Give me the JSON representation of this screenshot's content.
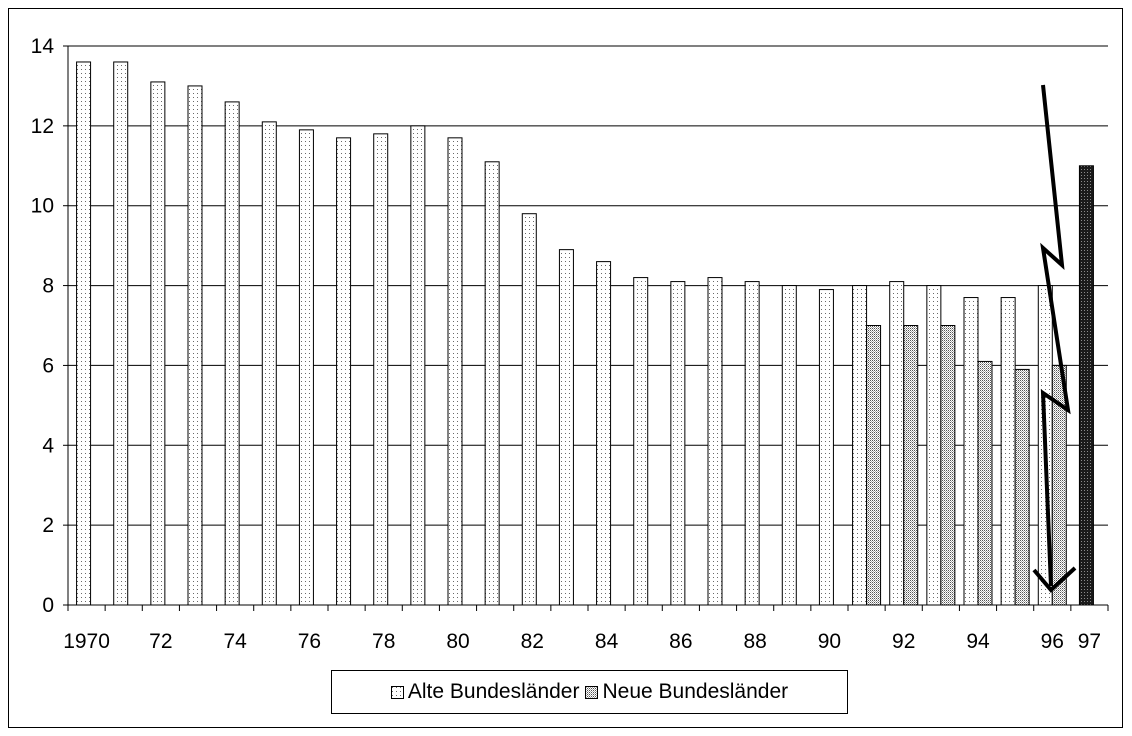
{
  "chart_data": {
    "type": "bar",
    "categories": [
      "1970",
      "1971",
      "1972",
      "1973",
      "1974",
      "1975",
      "1976",
      "1977",
      "1978",
      "1979",
      "1980",
      "1981",
      "1982",
      "1983",
      "1984",
      "1985",
      "1986",
      "1987",
      "1988",
      "1989",
      "1990",
      "1991",
      "1992",
      "1993",
      "1994",
      "1995",
      "1996",
      "1997"
    ],
    "x_tick_labels": [
      "1970",
      "72",
      "74",
      "76",
      "78",
      "80",
      "82",
      "84",
      "86",
      "88",
      "90",
      "92",
      "94",
      "96",
      "97"
    ],
    "x_tick_label_categories": [
      "1970",
      "1972",
      "1974",
      "1976",
      "1978",
      "1980",
      "1982",
      "1984",
      "1986",
      "1988",
      "1990",
      "1992",
      "1994",
      "1996",
      "1997"
    ],
    "series": [
      {
        "name": "Alte Bundesländer",
        "color": "#ffffff",
        "pattern": "sparse-dots",
        "values": [
          13.6,
          13.6,
          13.1,
          13.0,
          12.6,
          12.1,
          11.9,
          11.7,
          11.8,
          12.0,
          11.7,
          11.1,
          9.8,
          8.9,
          8.6,
          8.2,
          8.1,
          8.2,
          8.1,
          8.0,
          7.9,
          8.0,
          8.1,
          8.0,
          7.7,
          7.7,
          8.0,
          null
        ]
      },
      {
        "name": "Neue Bundesländer",
        "color": "#b0b0b0",
        "pattern": "dense-dots",
        "values": [
          null,
          null,
          null,
          null,
          null,
          null,
          null,
          null,
          null,
          null,
          null,
          null,
          null,
          null,
          null,
          null,
          null,
          null,
          null,
          null,
          null,
          7.0,
          7.0,
          7.0,
          6.1,
          5.9,
          6.0,
          null
        ]
      },
      {
        "name": "",
        "color": "#3a3a3a",
        "pattern": "dark-crosshatch",
        "values": [
          null,
          null,
          null,
          null,
          null,
          null,
          null,
          null,
          null,
          null,
          null,
          null,
          null,
          null,
          null,
          null,
          null,
          null,
          null,
          null,
          null,
          null,
          null,
          null,
          null,
          null,
          null,
          11.0
        ]
      }
    ],
    "title": "",
    "xlabel": "",
    "ylabel": "",
    "ylim": [
      0,
      14
    ],
    "y_ticks": [
      "0",
      "2",
      "4",
      "6",
      "8",
      "10",
      "12",
      "14"
    ],
    "grid": true,
    "legend_position": "bottom-center",
    "annotation": "zigzag-arrow-down"
  },
  "legend": {
    "entries": [
      {
        "label": "Alte Bundesländer",
        "pattern": "sparse-dots"
      },
      {
        "label": "Neue Bundesländer",
        "pattern": "dense-dots"
      }
    ]
  }
}
